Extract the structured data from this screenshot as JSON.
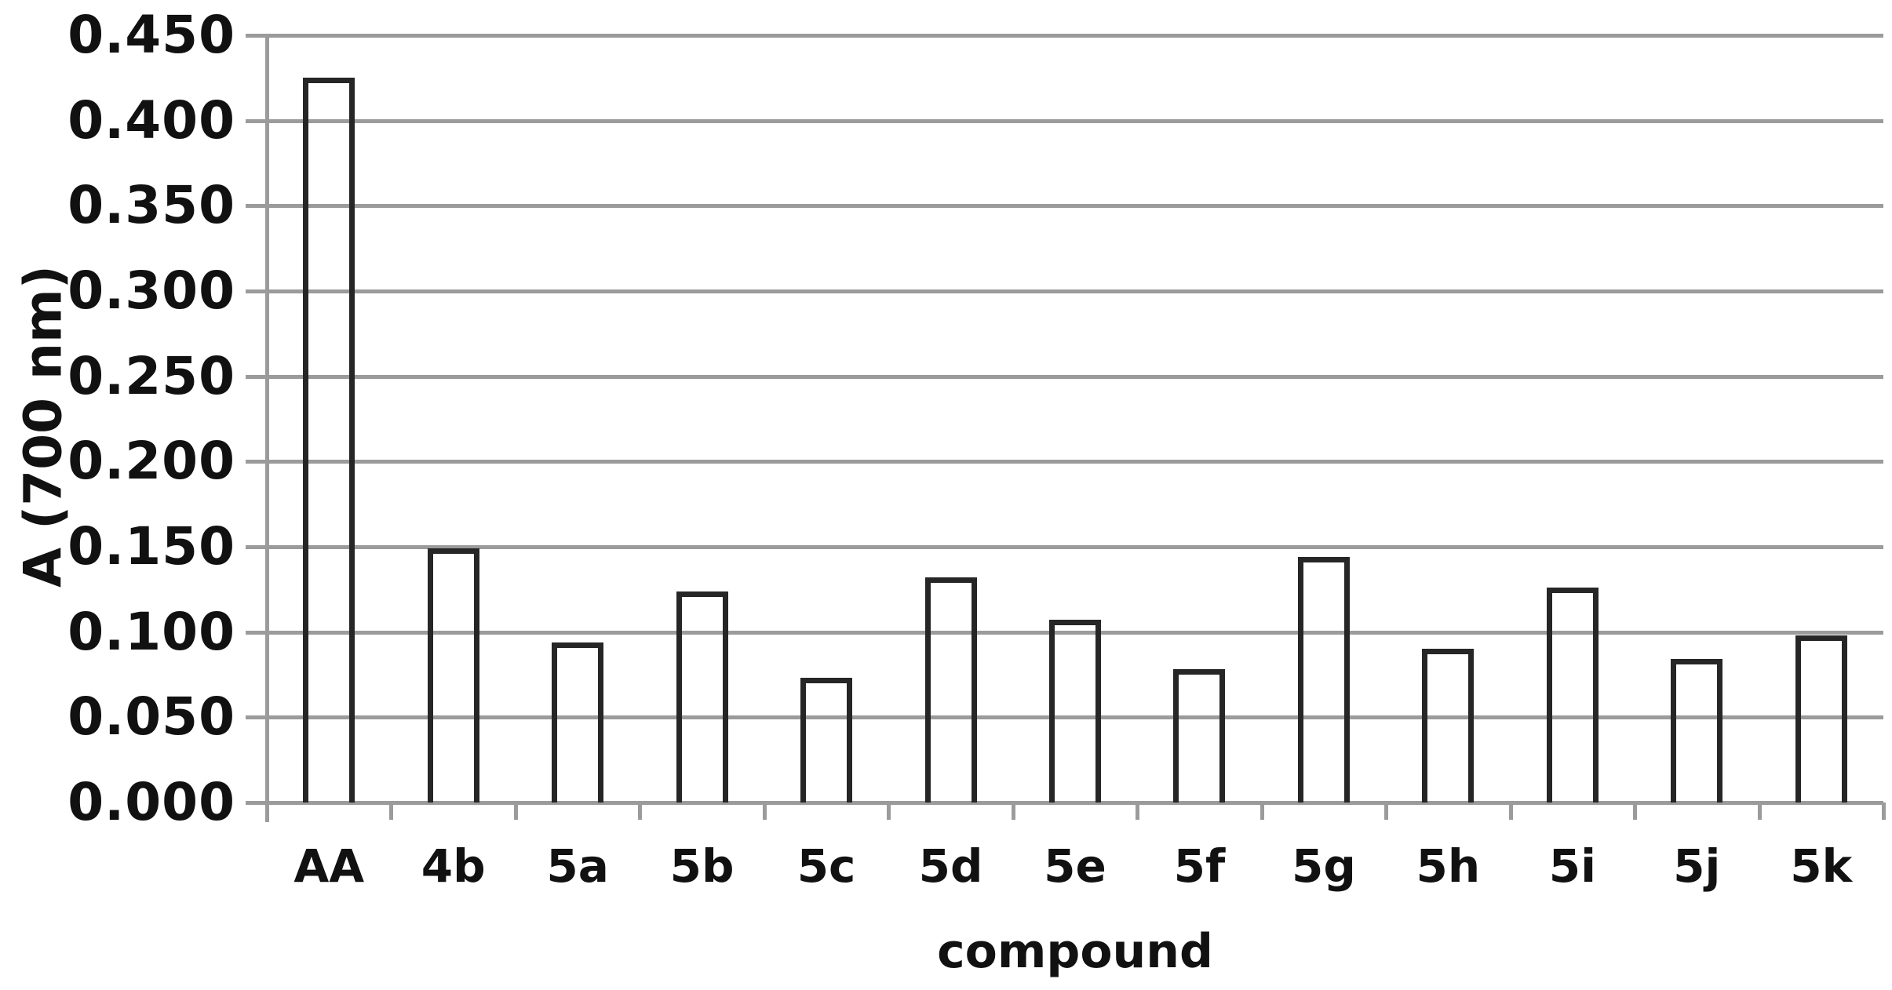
{
  "chart_data": {
    "type": "bar",
    "title": "",
    "xlabel": "compound",
    "ylabel": "A (700 nm)",
    "categories": [
      "AA",
      "4b",
      "5a",
      "5b",
      "5c",
      "5d",
      "5e",
      "5f",
      "5g",
      "5h",
      "5i",
      "5j",
      "5k"
    ],
    "values": [
      0.425,
      0.149,
      0.094,
      0.124,
      0.073,
      0.132,
      0.107,
      0.078,
      0.144,
      0.09,
      0.126,
      0.084,
      0.098
    ],
    "ylim": [
      0.0,
      0.45
    ],
    "ytick_step": 0.05,
    "ytick_labels": [
      "0.000",
      "0.050",
      "0.100",
      "0.150",
      "0.200",
      "0.250",
      "0.300",
      "0.350",
      "0.400",
      "0.450"
    ],
    "grid": "horizontal-only",
    "legend_position": "none",
    "bar_fill_color": "transparent",
    "bar_outline_color": "#262626",
    "gridline_color": "#9b9b9b",
    "axis_line_color": "#9b9b9b",
    "text_color": "#111111",
    "background_color": "#ffffff"
  }
}
